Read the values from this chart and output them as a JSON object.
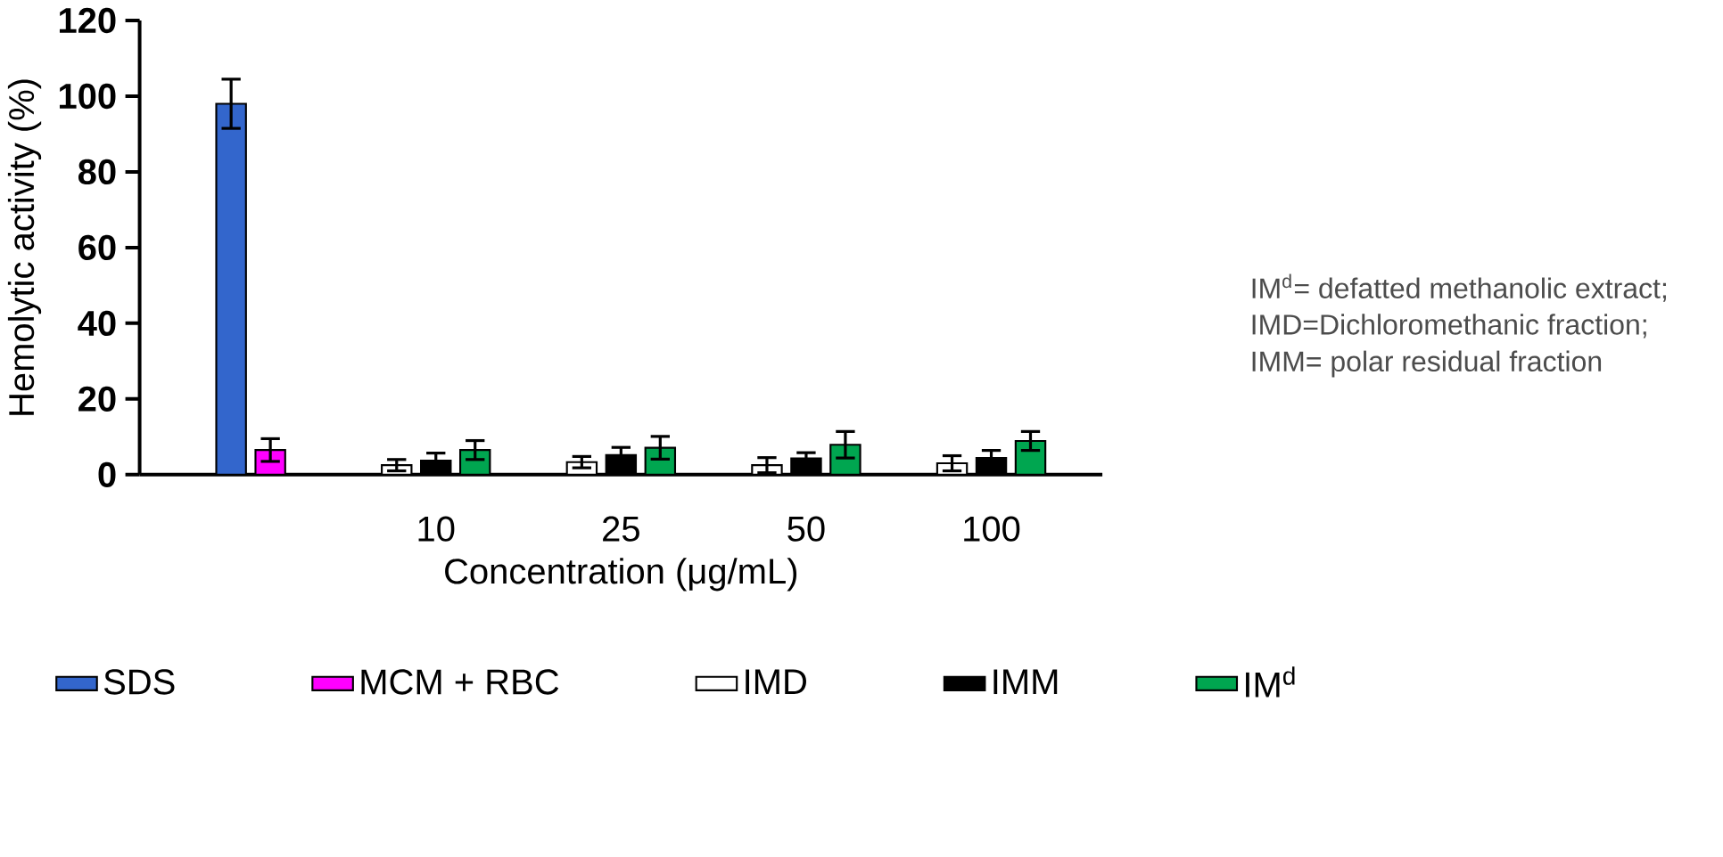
{
  "chart_data": {
    "type": "bar",
    "xlabel": "Concentration (μg/mL)",
    "ylabel": "Hemolytic activity (%)",
    "categories": [
      null,
      "10",
      "25",
      "50",
      "100"
    ],
    "series": [
      {
        "name": "SDS",
        "color": "#3366cc",
        "values": [
          98,
          null,
          null,
          null,
          null
        ],
        "errors": [
          6.5,
          null,
          null,
          null,
          null
        ]
      },
      {
        "name": "MCM + RBC",
        "color": "#ff00ff",
        "values": [
          6.5,
          null,
          null,
          null,
          null
        ],
        "errors": [
          3,
          null,
          null,
          null,
          null
        ]
      },
      {
        "name": "IMD",
        "color": "#ffffff",
        "values": [
          null,
          2.5,
          3.3,
          2.5,
          3.0
        ],
        "errors": [
          null,
          1.5,
          1.5,
          2,
          2
        ]
      },
      {
        "name": "IMM",
        "color": "#000000",
        "values": [
          null,
          3.7,
          5.2,
          4.3,
          4.4
        ],
        "errors": [
          null,
          2,
          2,
          1.5,
          2
        ]
      },
      {
        "name": "IM$^{d}$",
        "color": "#00a650",
        "values": [
          null,
          6.5,
          7.1,
          7.9,
          8.9
        ],
        "errors": [
          null,
          2.5,
          3,
          3.5,
          2.5
        ]
      }
    ],
    "ylim": [
      0,
      120
    ],
    "yticks": [
      0,
      20,
      40,
      60,
      80,
      100,
      120
    ],
    "legend": "bottom",
    "annotations": [
      "IM$^{d}$= defatted methanolic extract;",
      "IMD=Dichloromethanic fraction;",
      "IMM= polar residual fraction"
    ]
  }
}
